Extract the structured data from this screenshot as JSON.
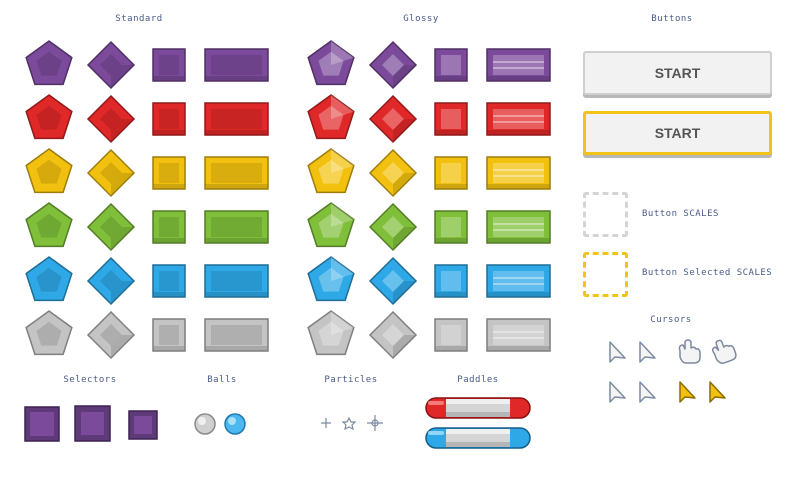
{
  "sections": {
    "standard": "Standard",
    "glossy": "Glossy",
    "buttons": "Buttons",
    "selectors": "Selectors",
    "balls": "Balls",
    "particles": "Particles",
    "paddles": "Paddles",
    "cursors": "Cursors"
  },
  "buttons": {
    "start_label": "START",
    "start_selected_label": "START",
    "button_scales_label": "Button SCALES",
    "button_selected_scales_label": "Button Selected SCALES"
  },
  "colors": {
    "purple": "#7b4a9a",
    "red": "#e02828",
    "yellow": "#f2c10f",
    "green": "#7fbf3a",
    "blue": "#2ea8e6",
    "gray": "#c4c4c4",
    "selected_outline": "#f0c419"
  },
  "gem_rows": [
    "purple",
    "red",
    "yellow",
    "green",
    "blue",
    "gray"
  ],
  "gem_shapes": [
    "pentagon",
    "diamond",
    "square",
    "bar"
  ],
  "cursor_icons": [
    "arrow-cursor-icon",
    "arrow-cursor-icon",
    "hand-cursor-icon",
    "hand-cursor-icon",
    "arrow-cursor-icon",
    "arrow-cursor-icon",
    "arrow-cursor-yellow-icon",
    "arrow-cursor-yellow-icon"
  ]
}
